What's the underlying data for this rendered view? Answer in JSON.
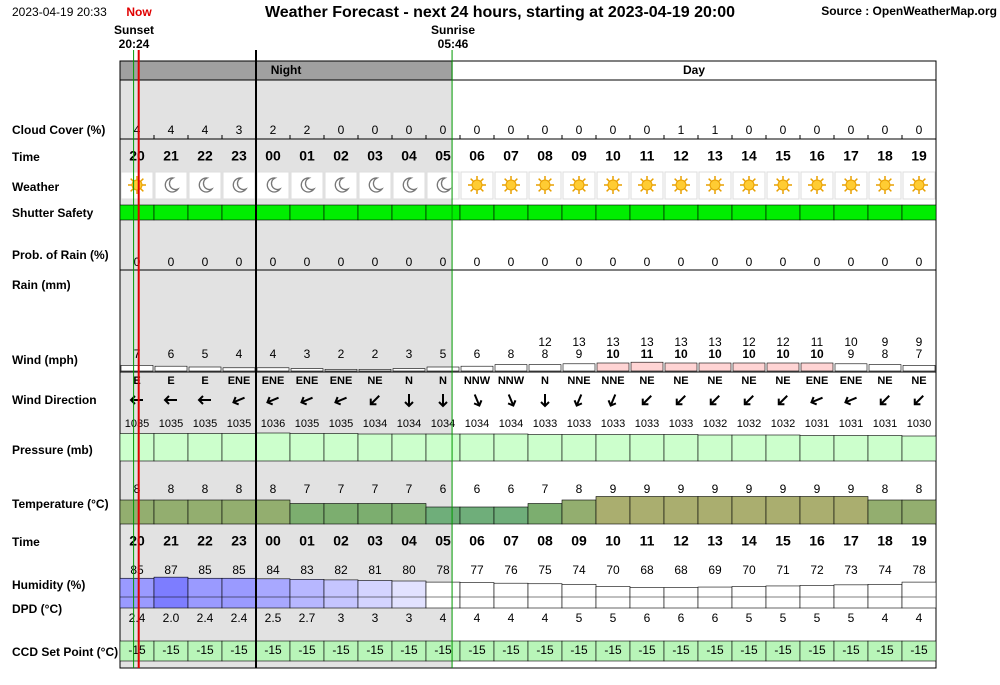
{
  "header": {
    "timestamp": "2023-04-19 20:33",
    "now": "Now",
    "title": "Weather Forecast - next 24 hours, starting at 2023-04-19 20:00",
    "source": "Source : OpenWeatherMap.org"
  },
  "sun": {
    "sunset_label": "Sunset",
    "sunset_time": "20:24",
    "sunrise_label": "Sunrise",
    "sunrise_time": "05:46"
  },
  "periods": {
    "night": "Night",
    "day": "Day"
  },
  "row_labels": {
    "cloud_cover": "Cloud Cover (%)",
    "time": "Time",
    "weather": "Weather",
    "shutter": "Shutter Safety",
    "prob_rain": "Prob. of Rain (%)",
    "rain": "Rain (mm)",
    "wind": "Wind (mph)",
    "wind_direction": "Wind Direction",
    "pressure": "Pressure (mb)",
    "temperature": "Temperature (°C)",
    "time2": "Time",
    "humidity": "Humidity (%)",
    "dpd": "DPD (°C)",
    "ccd": "CCD Set Point (°C)"
  },
  "hours": [
    "20",
    "21",
    "22",
    "23",
    "00",
    "01",
    "02",
    "03",
    "04",
    "05",
    "06",
    "07",
    "08",
    "09",
    "10",
    "11",
    "12",
    "13",
    "14",
    "15",
    "16",
    "17",
    "18",
    "19"
  ],
  "cloud_cover": [
    4,
    4,
    4,
    3,
    2,
    2,
    0,
    0,
    0,
    0,
    0,
    0,
    0,
    0,
    0,
    0,
    1,
    1,
    0,
    0,
    0,
    0,
    0,
    0
  ],
  "prob_rain": [
    0,
    0,
    0,
    0,
    0,
    0,
    0,
    0,
    0,
    0,
    0,
    0,
    0,
    0,
    0,
    0,
    0,
    0,
    0,
    0,
    0,
    0,
    0,
    0
  ],
  "wind_gust": [
    null,
    null,
    null,
    null,
    null,
    null,
    null,
    null,
    null,
    null,
    null,
    null,
    12,
    13,
    13,
    13,
    13,
    13,
    12,
    12,
    11,
    10,
    9,
    9
  ],
  "wind": [
    7,
    6,
    5,
    4,
    4,
    3,
    2,
    2,
    3,
    5,
    6,
    8,
    8,
    9,
    10,
    11,
    10,
    10,
    10,
    10,
    10,
    9,
    8,
    7
  ],
  "wind_direction": [
    "E",
    "E",
    "E",
    "ENE",
    "ENE",
    "ENE",
    "ENE",
    "NE",
    "N",
    "N",
    "NNW",
    "NNW",
    "N",
    "NNE",
    "NNE",
    "NE",
    "NE",
    "NE",
    "NE",
    "NE",
    "ENE",
    "ENE",
    "NE",
    "NE"
  ],
  "pressure": [
    1035,
    1035,
    1035,
    1035,
    1036,
    1035,
    1035,
    1034,
    1034,
    1034,
    1034,
    1034,
    1033,
    1033,
    1033,
    1033,
    1033,
    1032,
    1032,
    1032,
    1031,
    1031,
    1031,
    1030
  ],
  "temperature": [
    8,
    8,
    8,
    8,
    8,
    7,
    7,
    7,
    7,
    6,
    6,
    6,
    7,
    8,
    9,
    9,
    9,
    9,
    9,
    9,
    9,
    9,
    8,
    8
  ],
  "humidity": [
    85,
    87,
    85,
    85,
    84,
    83,
    82,
    81,
    80,
    78,
    77,
    76,
    75,
    74,
    70,
    68,
    68,
    69,
    70,
    71,
    72,
    73,
    74,
    78
  ],
  "dpd": [
    2.4,
    2.0,
    2.4,
    2.4,
    2.5,
    2.7,
    3,
    3,
    3,
    4,
    4,
    4,
    4,
    5,
    5,
    6,
    6,
    6,
    5,
    5,
    5,
    5,
    4,
    4
  ],
  "dpd_labels": [
    "2.4",
    "2.0",
    "2.4",
    "2.4",
    "2.5",
    "2.7",
    "3",
    "3",
    "3",
    "4",
    "4",
    "4",
    "4",
    "5",
    "5",
    "6",
    "6",
    "6",
    "5",
    "5",
    "5",
    "5",
    "4",
    "4"
  ],
  "ccd_set_point": [
    -15,
    -15,
    -15,
    -15,
    -15,
    -15,
    -15,
    -15,
    -15,
    -15,
    -15,
    -15,
    -15,
    -15,
    -15,
    -15,
    -15,
    -15,
    -15,
    -15,
    -15,
    -15,
    -15,
    -15
  ]
}
